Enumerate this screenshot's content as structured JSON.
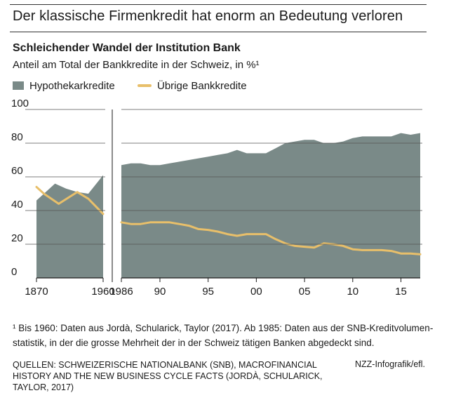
{
  "header": {
    "title": "Der klassische Firmenkredit hat enorm an Bedeutung verloren",
    "subtitle": "Schleichender Wandel der Institution Bank",
    "description": "Anteil am Total der Bankkredite in der Schweiz, in %¹"
  },
  "colors": {
    "area": "#7a8a88",
    "line": "#e8bf6a",
    "grid": "#555555"
  },
  "chart_data": {
    "type": "area",
    "ylim": [
      0,
      100
    ],
    "yticks": [
      "100",
      "80",
      "60",
      "40",
      "20",
      "0"
    ],
    "grid": true,
    "legend_position": "top-left",
    "series": [
      {
        "name": "Hypothekarkredite",
        "type": "area"
      },
      {
        "name": "Übrige Bankkredite",
        "type": "line"
      }
    ],
    "panels": [
      {
        "xlim": [
          1870,
          1960
        ],
        "xticks": [
          {
            "value": 1870,
            "label": "1870"
          },
          {
            "value": 1960,
            "label": "1960"
          }
        ],
        "hypothekarkredite": [
          [
            1870,
            46
          ],
          [
            1880,
            50
          ],
          [
            1895,
            56
          ],
          [
            1910,
            53
          ],
          [
            1925,
            51
          ],
          [
            1940,
            50
          ],
          [
            1960,
            61
          ]
        ],
        "uebrige": [
          [
            1870,
            54
          ],
          [
            1880,
            50
          ],
          [
            1900,
            44
          ],
          [
            1925,
            51
          ],
          [
            1940,
            47
          ],
          [
            1960,
            38
          ]
        ]
      },
      {
        "xlim": [
          1986,
          2017
        ],
        "xticks": [
          {
            "value": 1986,
            "label": "1986"
          },
          {
            "value": 1990,
            "label": "90"
          },
          {
            "value": 1995,
            "label": "95"
          },
          {
            "value": 2000,
            "label": "00"
          },
          {
            "value": 2005,
            "label": "05"
          },
          {
            "value": 2010,
            "label": "10"
          },
          {
            "value": 2015,
            "label": "15"
          }
        ],
        "hypothekarkredite": [
          [
            1986,
            67
          ],
          [
            1987,
            68
          ],
          [
            1988,
            68
          ],
          [
            1989,
            67
          ],
          [
            1990,
            67
          ],
          [
            1991,
            68
          ],
          [
            1992,
            69
          ],
          [
            1993,
            70
          ],
          [
            1994,
            71
          ],
          [
            1995,
            72
          ],
          [
            1996,
            73
          ],
          [
            1997,
            74
          ],
          [
            1998,
            76
          ],
          [
            1999,
            74
          ],
          [
            2000,
            74
          ],
          [
            2001,
            74
          ],
          [
            2002,
            77
          ],
          [
            2003,
            80
          ],
          [
            2004,
            81
          ],
          [
            2005,
            82
          ],
          [
            2006,
            82
          ],
          [
            2007,
            80
          ],
          [
            2008,
            80
          ],
          [
            2009,
            81
          ],
          [
            2010,
            83
          ],
          [
            2011,
            84
          ],
          [
            2012,
            84
          ],
          [
            2013,
            84
          ],
          [
            2014,
            84
          ],
          [
            2015,
            86
          ],
          [
            2016,
            85
          ],
          [
            2017,
            86
          ]
        ],
        "uebrige": [
          [
            1986,
            33
          ],
          [
            1987,
            32
          ],
          [
            1988,
            32
          ],
          [
            1989,
            33
          ],
          [
            1990,
            33
          ],
          [
            1991,
            33
          ],
          [
            1992,
            32
          ],
          [
            1993,
            31
          ],
          [
            1994,
            29
          ],
          [
            1995,
            28.5
          ],
          [
            1996,
            27.5
          ],
          [
            1997,
            26
          ],
          [
            1998,
            25
          ],
          [
            1999,
            26
          ],
          [
            2000,
            26
          ],
          [
            2001,
            26
          ],
          [
            2002,
            23
          ],
          [
            2003,
            20.5
          ],
          [
            2004,
            19
          ],
          [
            2005,
            18.5
          ],
          [
            2006,
            18
          ],
          [
            2007,
            20.5
          ],
          [
            2008,
            20
          ],
          [
            2009,
            19
          ],
          [
            2010,
            17
          ],
          [
            2011,
            16.5
          ],
          [
            2012,
            16.5
          ],
          [
            2013,
            16.5
          ],
          [
            2014,
            16
          ],
          [
            2015,
            14.5
          ],
          [
            2016,
            14.5
          ],
          [
            2017,
            14
          ]
        ]
      }
    ]
  },
  "footnote": "¹ Bis 1960: Daten aus Jordà, Schularick, Taylor (2017). Ab 1985: Daten aus der SNB-Kreditvolumen-statistik, in der die grosse Mehrheit der in der Schweiz tätigen Banken abgedeckt sind.",
  "sources": "QUELLEN: SCHWEIZERISCHE NATIONALBANK (SNB), MACROFINANCIAL HISTORY AND THE NEW BUSINESS CYCLE FACTS (JORDÀ, SCHULARICK, TAYLOR, 2017)",
  "credit": "NZZ-Infografik/efl."
}
